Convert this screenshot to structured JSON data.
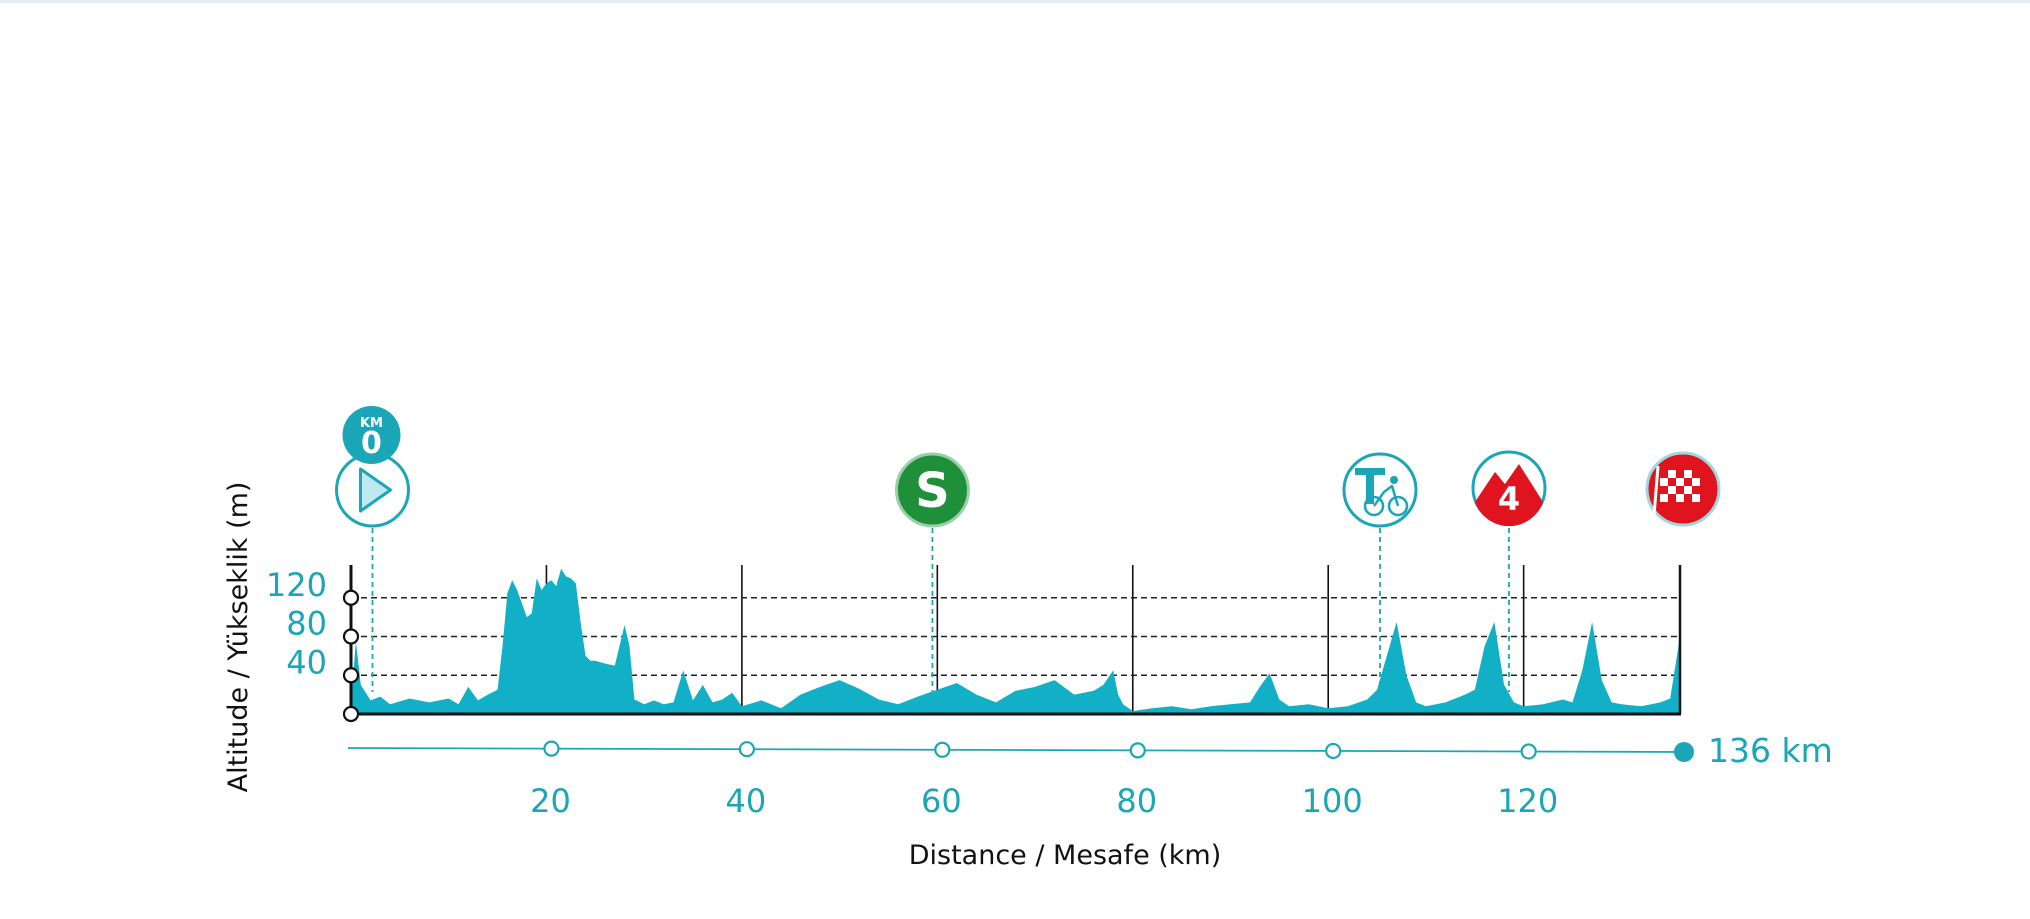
{
  "colors": {
    "profile_fill": "#12b0c6",
    "accent": "#1aa6b7",
    "sprint_green": "#1f8f3a",
    "climb_red": "#e0141e",
    "axis_black": "#111111",
    "grid_dash": "#222222"
  },
  "markers": [
    {
      "type": "start",
      "km": 2.2,
      "icon": "play-icon",
      "badge_top": "KM",
      "badge_value": "0"
    },
    {
      "type": "sprint",
      "km": 59.5,
      "icon": "sprint-s-icon",
      "label": "S"
    },
    {
      "type": "technical",
      "km": 105.3,
      "icon": "technical-cyclist-icon",
      "label": "T"
    },
    {
      "type": "climb",
      "km": 118.5,
      "icon": "mountain-category-icon",
      "label": "4"
    },
    {
      "type": "finish",
      "km": 136,
      "icon": "checkered-flag-icon"
    }
  ],
  "chart_data": {
    "type": "area",
    "xlabel": "Distance / Mesafe  (km)",
    "ylabel": "Altitude / Yükseklik (m)",
    "xlim": [
      0,
      136
    ],
    "ylim": [
      0,
      160
    ],
    "x_ticks": [
      20,
      40,
      60,
      80,
      100,
      120
    ],
    "y_ticks": [
      40,
      80,
      120
    ],
    "total_label": "136 km",
    "grid": "dashed horizontal at y ticks; vertical lines every 20 km",
    "series": [
      {
        "values_x": [
          0,
          0.5,
          1,
          2,
          3,
          4,
          6,
          8,
          10,
          11,
          12,
          13,
          14,
          15,
          15.5,
          16,
          16.5,
          17,
          18,
          18.5,
          19,
          19.5,
          20,
          20.5,
          21,
          21.5,
          22,
          22.5,
          23,
          23.5,
          24,
          24.5,
          25,
          26,
          27,
          28,
          28.5,
          29,
          30,
          31,
          32,
          33,
          34,
          35,
          36,
          37,
          38,
          39,
          40,
          42,
          44,
          46,
          48,
          50,
          52,
          54,
          56,
          58,
          60,
          62,
          64,
          66,
          68,
          70,
          72,
          74,
          76,
          77,
          78,
          78.5,
          79,
          80,
          82,
          84,
          86,
          88,
          90,
          92,
          93,
          94,
          95,
          96,
          98,
          100,
          102,
          104,
          105,
          106,
          107,
          108,
          109,
          110,
          112,
          114,
          115,
          116,
          117,
          118,
          119,
          120,
          122,
          124,
          125,
          126,
          127,
          128,
          129,
          130,
          132,
          134,
          135,
          136
        ],
        "values_y": [
          12,
          75,
          30,
          14,
          18,
          10,
          16,
          12,
          16,
          10,
          28,
          14,
          20,
          25,
          70,
          125,
          138,
          128,
          100,
          104,
          140,
          128,
          135,
          138,
          132,
          150,
          142,
          140,
          135,
          95,
          60,
          55,
          55,
          52,
          50,
          92,
          70,
          15,
          10,
          14,
          10,
          12,
          45,
          14,
          30,
          12,
          15,
          22,
          8,
          14,
          6,
          20,
          28,
          35,
          26,
          15,
          10,
          18,
          25,
          32,
          20,
          12,
          24,
          28,
          35,
          20,
          24,
          30,
          45,
          20,
          10,
          3,
          6,
          8,
          5,
          8,
          10,
          12,
          28,
          42,
          15,
          8,
          10,
          6,
          8,
          15,
          25,
          60,
          95,
          40,
          12,
          8,
          12,
          20,
          25,
          70,
          95,
          30,
          12,
          8,
          10,
          15,
          12,
          45,
          95,
          35,
          12,
          10,
          8,
          12,
          16,
          80
        ]
      }
    ]
  }
}
